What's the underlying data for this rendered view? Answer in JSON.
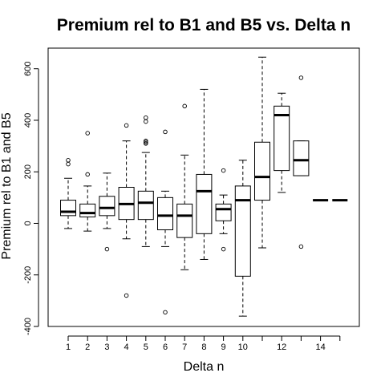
{
  "chart_data": {
    "type": "boxplot",
    "title": "Premium rel to B1 and B5 vs. Delta n",
    "xlabel": "Delta n",
    "ylabel": "Premium rel to B1 and B5",
    "ylim": [
      -400,
      680
    ],
    "yticks": [
      -400,
      -200,
      0,
      200,
      400,
      600
    ],
    "xtick_labels_shown": [
      "1",
      "2",
      "3",
      "4",
      "5",
      "6",
      "7",
      "8",
      "9",
      "10",
      "12",
      "14"
    ],
    "grid": false,
    "legend": "none",
    "boxes": [
      {
        "group": "1",
        "whisker_low": -20,
        "q1": 30,
        "median": 45,
        "q3": 90,
        "whisker_high": 175,
        "outliers": [
          230,
          245
        ]
      },
      {
        "group": "2",
        "whisker_low": -30,
        "q1": 25,
        "median": 40,
        "q3": 75,
        "whisker_high": 145,
        "outliers": [
          190,
          350
        ]
      },
      {
        "group": "3",
        "whisker_low": -20,
        "q1": 30,
        "median": 60,
        "q3": 105,
        "whisker_high": 195,
        "outliers": [
          -100
        ]
      },
      {
        "group": "4",
        "whisker_low": -60,
        "q1": 15,
        "median": 75,
        "q3": 140,
        "whisker_high": 320,
        "outliers": [
          380,
          -280
        ]
      },
      {
        "group": "5",
        "whisker_low": -90,
        "q1": 15,
        "median": 80,
        "q3": 125,
        "whisker_high": 275,
        "outliers": [
          310,
          315,
          320,
          395,
          410
        ]
      },
      {
        "group": "6",
        "whisker_low": -90,
        "q1": -25,
        "median": 30,
        "q3": 100,
        "whisker_high": 125,
        "outliers": [
          355,
          -345
        ]
      },
      {
        "group": "7",
        "whisker_low": -180,
        "q1": -55,
        "median": 30,
        "q3": 75,
        "whisker_high": 265,
        "outliers": [
          455
        ]
      },
      {
        "group": "8",
        "whisker_low": -140,
        "q1": -40,
        "median": 125,
        "q3": 190,
        "whisker_high": 520,
        "outliers": []
      },
      {
        "group": "9",
        "whisker_low": -40,
        "q1": 10,
        "median": 55,
        "q3": 75,
        "whisker_high": 110,
        "outliers": [
          205,
          -100
        ]
      },
      {
        "group": "10",
        "whisker_low": -360,
        "q1": -205,
        "median": 90,
        "q3": 145,
        "whisker_high": 245,
        "outliers": []
      },
      {
        "group": "11",
        "whisker_low": -95,
        "q1": 90,
        "median": 180,
        "q3": 315,
        "whisker_high": 645,
        "outliers": []
      },
      {
        "group": "12",
        "whisker_low": 120,
        "q1": 205,
        "median": 420,
        "q3": 455,
        "whisker_high": 505,
        "outliers": []
      },
      {
        "group": "13",
        "whisker_low": 185,
        "q1": 185,
        "median": 245,
        "q3": 320,
        "whisker_high": 320,
        "outliers": [
          565,
          -90
        ]
      },
      {
        "group": "14",
        "whisker_low": 90,
        "q1": 90,
        "median": 90,
        "q3": 90,
        "whisker_high": 90,
        "outliers": []
      },
      {
        "group": "15",
        "whisker_low": 90,
        "q1": 90,
        "median": 90,
        "q3": 90,
        "whisker_high": 90,
        "outliers": []
      }
    ]
  }
}
